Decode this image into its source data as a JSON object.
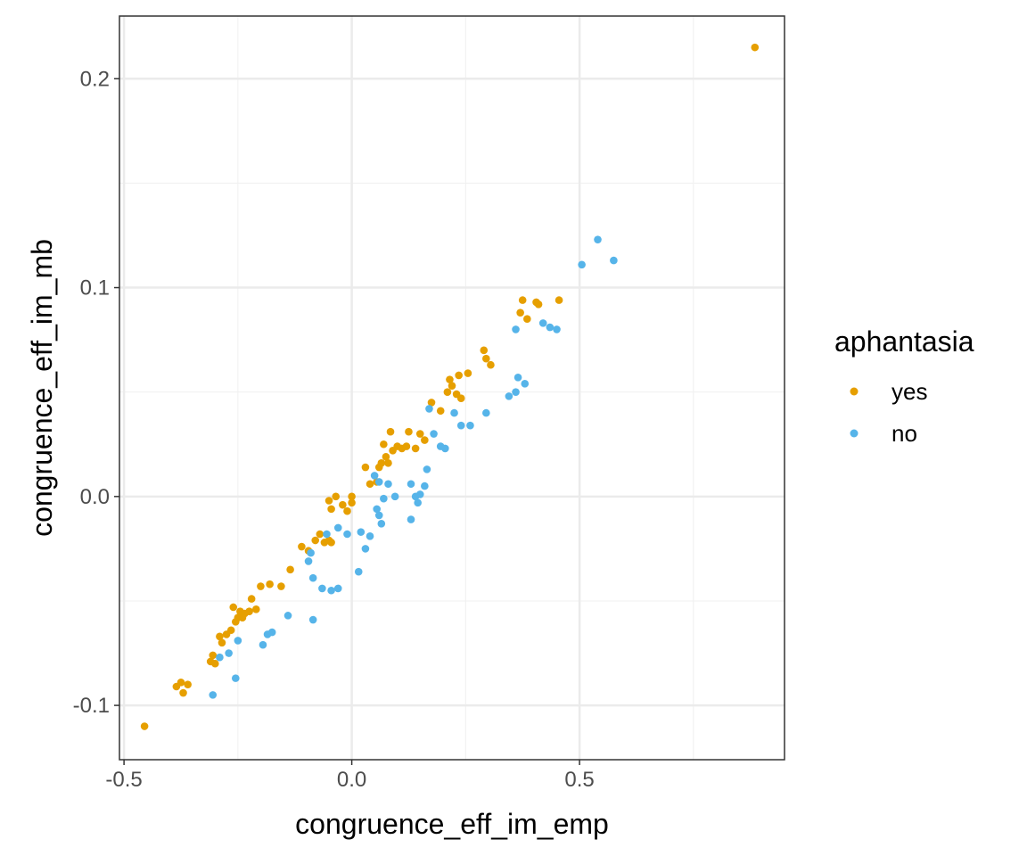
{
  "chart_data": {
    "type": "scatter",
    "title": "",
    "xlabel": "congruence_eff_im_emp",
    "ylabel": "congruence_eff_im_mb",
    "xlim": [
      -0.51,
      0.95
    ],
    "ylim": [
      -0.126,
      0.23
    ],
    "x_ticks": [
      -0.5,
      0.0,
      0.5
    ],
    "x_tick_labels": [
      "-0.5",
      "0.0",
      "0.5"
    ],
    "y_ticks": [
      -0.1,
      0.0,
      0.1,
      0.2
    ],
    "y_tick_labels": [
      "-0.1",
      "0.0",
      "0.1",
      "0.2"
    ],
    "grid": true,
    "legend": {
      "title": "aphantasia",
      "position": "right"
    },
    "series": [
      {
        "name": "yes",
        "color": "#E69F00",
        "points": [
          [
            0.885,
            0.215
          ],
          [
            -0.455,
            -0.11
          ],
          [
            -0.385,
            -0.091
          ],
          [
            -0.375,
            -0.089
          ],
          [
            -0.37,
            -0.094
          ],
          [
            -0.36,
            -0.09
          ],
          [
            -0.31,
            -0.079
          ],
          [
            -0.305,
            -0.076
          ],
          [
            -0.3,
            -0.08
          ],
          [
            -0.29,
            -0.067
          ],
          [
            -0.285,
            -0.07
          ],
          [
            -0.275,
            -0.066
          ],
          [
            -0.265,
            -0.064
          ],
          [
            -0.26,
            -0.053
          ],
          [
            -0.255,
            -0.06
          ],
          [
            -0.25,
            -0.058
          ],
          [
            -0.245,
            -0.055
          ],
          [
            -0.24,
            -0.058
          ],
          [
            -0.235,
            -0.056
          ],
          [
            -0.225,
            -0.055
          ],
          [
            -0.22,
            -0.049
          ],
          [
            -0.21,
            -0.054
          ],
          [
            -0.2,
            -0.043
          ],
          [
            -0.18,
            -0.042
          ],
          [
            -0.155,
            -0.043
          ],
          [
            -0.135,
            -0.035
          ],
          [
            -0.11,
            -0.024
          ],
          [
            -0.095,
            -0.026
          ],
          [
            -0.08,
            -0.021
          ],
          [
            -0.07,
            -0.018
          ],
          [
            -0.06,
            -0.022
          ],
          [
            -0.05,
            -0.021
          ],
          [
            -0.045,
            -0.022
          ],
          [
            -0.05,
            -0.002
          ],
          [
            -0.045,
            -0.006
          ],
          [
            -0.035,
            0.0
          ],
          [
            -0.02,
            -0.004
          ],
          [
            -0.01,
            -0.007
          ],
          [
            0.0,
            0.0
          ],
          [
            0.0,
            -0.003
          ],
          [
            0.03,
            0.014
          ],
          [
            0.04,
            0.006
          ],
          [
            0.055,
            0.007
          ],
          [
            0.06,
            0.014
          ],
          [
            0.065,
            0.016
          ],
          [
            0.07,
            0.025
          ],
          [
            0.075,
            0.019
          ],
          [
            0.08,
            0.016
          ],
          [
            0.085,
            0.031
          ],
          [
            0.09,
            0.022
          ],
          [
            0.1,
            0.024
          ],
          [
            0.11,
            0.023
          ],
          [
            0.12,
            0.024
          ],
          [
            0.125,
            0.031
          ],
          [
            0.14,
            0.023
          ],
          [
            0.15,
            0.03
          ],
          [
            0.16,
            0.027
          ],
          [
            0.175,
            0.045
          ],
          [
            0.195,
            0.041
          ],
          [
            0.21,
            0.05
          ],
          [
            0.215,
            0.056
          ],
          [
            0.22,
            0.053
          ],
          [
            0.23,
            0.049
          ],
          [
            0.235,
            0.058
          ],
          [
            0.24,
            0.047
          ],
          [
            0.255,
            0.059
          ],
          [
            0.29,
            0.07
          ],
          [
            0.295,
            0.066
          ],
          [
            0.305,
            0.063
          ],
          [
            0.37,
            0.088
          ],
          [
            0.375,
            0.094
          ],
          [
            0.385,
            0.085
          ],
          [
            0.405,
            0.093
          ],
          [
            0.41,
            0.092
          ],
          [
            0.455,
            0.094
          ]
        ]
      },
      {
        "name": "no",
        "color": "#56B4E9",
        "points": [
          [
            0.54,
            0.123
          ],
          [
            0.575,
            0.113
          ],
          [
            0.505,
            0.111
          ],
          [
            0.42,
            0.083
          ],
          [
            0.435,
            0.081
          ],
          [
            0.45,
            0.08
          ],
          [
            0.36,
            0.08
          ],
          [
            0.365,
            0.057
          ],
          [
            0.38,
            0.054
          ],
          [
            0.36,
            0.05
          ],
          [
            0.345,
            0.048
          ],
          [
            0.295,
            0.04
          ],
          [
            0.26,
            0.034
          ],
          [
            0.24,
            0.034
          ],
          [
            0.225,
            0.04
          ],
          [
            0.205,
            0.023
          ],
          [
            0.195,
            0.024
          ],
          [
            0.18,
            0.03
          ],
          [
            0.17,
            0.042
          ],
          [
            0.165,
            0.013
          ],
          [
            0.16,
            0.005
          ],
          [
            0.15,
            0.001
          ],
          [
            0.14,
            0.0
          ],
          [
            0.145,
            -0.003
          ],
          [
            0.13,
            0.006
          ],
          [
            0.13,
            -0.011
          ],
          [
            0.095,
            0.0
          ],
          [
            0.08,
            0.006
          ],
          [
            0.07,
            -0.001
          ],
          [
            0.065,
            -0.013
          ],
          [
            0.06,
            0.007
          ],
          [
            0.055,
            -0.006
          ],
          [
            0.05,
            0.01
          ],
          [
            0.04,
            -0.019
          ],
          [
            0.02,
            -0.017
          ],
          [
            0.03,
            -0.025
          ],
          [
            0.015,
            -0.036
          ],
          [
            0.06,
            -0.009
          ],
          [
            -0.01,
            -0.018
          ],
          [
            -0.03,
            -0.015
          ],
          [
            -0.055,
            -0.018
          ],
          [
            -0.085,
            -0.039
          ],
          [
            -0.095,
            -0.031
          ],
          [
            -0.09,
            -0.027
          ],
          [
            -0.065,
            -0.044
          ],
          [
            -0.045,
            -0.045
          ],
          [
            -0.03,
            -0.044
          ],
          [
            -0.085,
            -0.059
          ],
          [
            -0.14,
            -0.057
          ],
          [
            -0.175,
            -0.065
          ],
          [
            -0.185,
            -0.066
          ],
          [
            -0.195,
            -0.071
          ],
          [
            -0.25,
            -0.069
          ],
          [
            -0.27,
            -0.075
          ],
          [
            -0.29,
            -0.077
          ],
          [
            -0.255,
            -0.087
          ],
          [
            -0.305,
            -0.095
          ]
        ]
      }
    ]
  }
}
